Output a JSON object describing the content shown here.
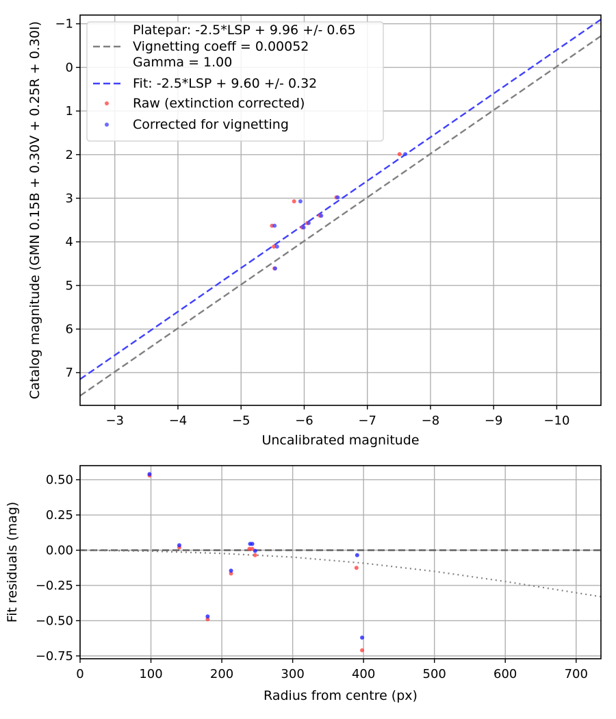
{
  "chart_data": [
    {
      "type": "scatter",
      "title": "",
      "xlabel": "Uncalibrated magnitude",
      "ylabel": "Catalog magnitude (GMN 0.15B + 0.30V + 0.25R + 0.30I)",
      "xlim": [
        -2.45,
        -10.7
      ],
      "ylim": [
        7.75,
        -1.2
      ],
      "x_inverted": true,
      "y_inverted": true,
      "grid": true,
      "xticks": [
        -3,
        -4,
        -5,
        -6,
        -7,
        -8,
        -9,
        -10
      ],
      "xtick_labels": [
        "−3",
        "−4",
        "−5",
        "−6",
        "−7",
        "−8",
        "−9",
        "−10"
      ],
      "yticks": [
        -1,
        0,
        1,
        2,
        3,
        4,
        5,
        6,
        7
      ],
      "ytick_labels": [
        "−1",
        "0",
        "1",
        "2",
        "3",
        "4",
        "5",
        "6",
        "7"
      ],
      "legend_position": "upper-left",
      "legend": [
        {
          "kind": "line",
          "style": "dashed",
          "color": "#808080",
          "lines": [
            "Platepar: -2.5*LSP + 9.96 +/- 0.65",
            "Vignetting coeff = 0.00052",
            "Gamma = 1.00"
          ]
        },
        {
          "kind": "line",
          "style": "dashed",
          "color": "#4040ff",
          "lines": [
            "Fit: -2.5*LSP + 9.60 +/- 0.32"
          ]
        },
        {
          "kind": "marker",
          "color": "#ff5555",
          "lines": [
            "Raw (extinction corrected)"
          ]
        },
        {
          "kind": "marker",
          "color": "#5555ff",
          "lines": [
            "Corrected for vignetting"
          ]
        }
      ],
      "lines": [
        {
          "name": "Platepar",
          "color": "#808080",
          "style": "dashed",
          "x": [
            -2.45,
            -10.7
          ],
          "y": [
            7.53,
            -0.72
          ]
        },
        {
          "name": "Fit",
          "color": "#4040ff",
          "style": "dashed",
          "x": [
            -2.45,
            -10.7
          ],
          "y": [
            7.15,
            -1.1
          ]
        }
      ],
      "series": [
        {
          "name": "Raw (extinction corrected)",
          "color": "#ff4444",
          "points": [
            [
              -7.51,
              1.99
            ],
            [
              -5.84,
              3.07
            ],
            [
              -6.51,
              2.98
            ],
            [
              -5.49,
              3.63
            ],
            [
              -6.25,
              3.4
            ],
            [
              -6.05,
              3.57
            ],
            [
              -5.97,
              3.67
            ],
            [
              -5.52,
              4.11
            ],
            [
              -5.53,
              4.61
            ]
          ]
        },
        {
          "name": "Corrected for vignetting",
          "color": "#4444ff",
          "points": [
            [
              -7.6,
              1.99
            ],
            [
              -5.94,
              3.07
            ],
            [
              -6.53,
              2.98
            ],
            [
              -5.53,
              3.63
            ],
            [
              -6.27,
              3.4
            ],
            [
              -6.07,
              3.57
            ],
            [
              -5.99,
              3.67
            ],
            [
              -5.57,
              4.11
            ],
            [
              -5.54,
              4.61
            ]
          ]
        }
      ]
    },
    {
      "type": "scatter",
      "title": "",
      "xlabel": "Radius from centre (px)",
      "ylabel": "Fit residuals (mag)",
      "xlim": [
        0,
        735
      ],
      "ylim": [
        -0.77,
        0.6
      ],
      "grid": true,
      "xticks": [
        0,
        100,
        200,
        300,
        400,
        500,
        600,
        700
      ],
      "xtick_labels": [
        "0",
        "100",
        "200",
        "300",
        "400",
        "500",
        "600",
        "700"
      ],
      "yticks": [
        0.5,
        0.25,
        0.0,
        -0.25,
        -0.5,
        -0.75
      ],
      "ytick_labels": [
        "0.50",
        "0.25",
        "0.00",
        "−0.25",
        "−0.50",
        "−0.75"
      ],
      "lines": [
        {
          "name": "zero",
          "color": "#606060",
          "style": "dashed",
          "x": [
            0,
            735
          ],
          "y": [
            0,
            0
          ]
        },
        {
          "name": "vignetting",
          "color": "#808080",
          "style": "dotted",
          "x": [
            0,
            100,
            200,
            300,
            400,
            500,
            600,
            735
          ],
          "y": [
            0,
            -0.007,
            -0.023,
            -0.049,
            -0.092,
            -0.15,
            -0.222,
            -0.33
          ]
        }
      ],
      "series": [
        {
          "name": "Raw (extinction corrected)",
          "color": "#ff4444",
          "points": [
            [
              98,
              0.53
            ],
            [
              140,
              0.02
            ],
            [
              180,
              -0.49
            ],
            [
              213,
              -0.165
            ],
            [
              239,
              0.01
            ],
            [
              243,
              0.01
            ],
            [
              247,
              -0.035
            ],
            [
              390,
              -0.125
            ],
            [
              398,
              -0.71
            ]
          ]
        },
        {
          "name": "Corrected for vignetting",
          "color": "#2222ff",
          "points": [
            [
              98,
              0.54
            ],
            [
              140,
              0.035
            ],
            [
              180,
              -0.47
            ],
            [
              213,
              -0.145
            ],
            [
              240,
              0.045
            ],
            [
              243,
              0.045
            ],
            [
              247,
              -0.005
            ],
            [
              391,
              -0.035
            ],
            [
              398,
              -0.62
            ]
          ]
        }
      ]
    }
  ]
}
